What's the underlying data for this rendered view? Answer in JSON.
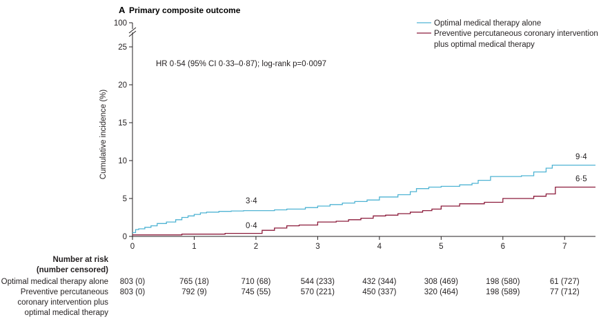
{
  "panel": {
    "letter": "A",
    "title": "Primary composite outcome"
  },
  "chart_data": {
    "type": "line",
    "subtype": "kaplan-meier cumulative incidence",
    "title": "Primary composite outcome",
    "ylabel": "Cumulative incidence (%)",
    "xlabel": "",
    "xlim": [
      0,
      7.5
    ],
    "ylim": [
      0,
      25
    ],
    "y_axis_break": {
      "top_tick_label": "100"
    },
    "x_ticks": [
      "0",
      "1",
      "2",
      "3",
      "4",
      "5",
      "6",
      "7"
    ],
    "y_ticks": [
      "0",
      "5",
      "10",
      "15",
      "20",
      "25"
    ],
    "grid": false,
    "legend_position": "top-right",
    "annotation": "HR 0·54 (95% CI 0·33–0·87); log-rank p=0·0097",
    "series": [
      {
        "name": "Optimal medical therapy alone",
        "color": "#4eb3d3",
        "x": [
          0,
          0.05,
          0.1,
          0.2,
          0.3,
          0.4,
          0.55,
          0.7,
          0.8,
          0.9,
          1.0,
          1.1,
          1.2,
          1.4,
          1.6,
          1.8,
          2.0,
          2.3,
          2.5,
          2.8,
          3.0,
          3.2,
          3.4,
          3.6,
          3.8,
          4.0,
          4.3,
          4.5,
          4.6,
          4.8,
          5.0,
          5.3,
          5.5,
          5.6,
          5.8,
          6.0,
          6.3,
          6.5,
          6.7,
          6.8,
          7.0,
          7.5
        ],
        "y": [
          0.5,
          0.9,
          1.0,
          1.2,
          1.4,
          1.7,
          1.9,
          2.2,
          2.5,
          2.7,
          2.9,
          3.1,
          3.2,
          3.3,
          3.35,
          3.4,
          3.4,
          3.5,
          3.6,
          3.8,
          4.0,
          4.2,
          4.4,
          4.6,
          4.8,
          5.2,
          5.5,
          5.9,
          6.3,
          6.5,
          6.6,
          6.8,
          7.0,
          7.4,
          7.9,
          7.9,
          8.0,
          8.5,
          9.0,
          9.4,
          9.4,
          9.4
        ],
        "end_label": "9·4",
        "mid_label": "3·4"
      },
      {
        "name": "Preventive percutaneous coronary intervention plus optimal medical therapy",
        "color": "#8b1a3a",
        "x": [
          0,
          0.5,
          0.8,
          1.0,
          1.5,
          1.9,
          2.1,
          2.3,
          2.5,
          2.7,
          3.0,
          3.3,
          3.5,
          3.7,
          3.9,
          4.1,
          4.3,
          4.5,
          4.7,
          4.85,
          5.0,
          5.3,
          5.5,
          5.7,
          6.0,
          6.3,
          6.5,
          6.7,
          6.85,
          7.0,
          7.5
        ],
        "y": [
          0.2,
          0.2,
          0.3,
          0.3,
          0.4,
          0.4,
          0.8,
          1.1,
          1.4,
          1.5,
          1.9,
          2.0,
          2.2,
          2.4,
          2.7,
          2.8,
          3.0,
          3.2,
          3.4,
          3.6,
          4.0,
          4.3,
          4.3,
          4.5,
          5.0,
          5.0,
          5.3,
          5.6,
          6.5,
          6.5,
          6.5
        ],
        "end_label": "6·5",
        "mid_label": "0·4"
      }
    ],
    "number_at_risk": {
      "header_line1": "Number at risk",
      "header_line2": "(number censored)",
      "rows": [
        {
          "label_lines": [
            "Optimal medical therapy alone"
          ],
          "values": [
            "803 (0)",
            "765 (18)",
            "710 (68)",
            "544 (233)",
            "432 (344)",
            "308 (469)",
            "198 (580)",
            "61 (727)"
          ]
        },
        {
          "label_lines": [
            "Preventive percutaneous",
            "coronary intervention plus",
            "optimal medical therapy"
          ],
          "values": [
            "803 (0)",
            "792 (9)",
            "745 (55)",
            "570 (221)",
            "450 (337)",
            "320 (464)",
            "198 (589)",
            "77 (712)"
          ]
        }
      ]
    }
  }
}
